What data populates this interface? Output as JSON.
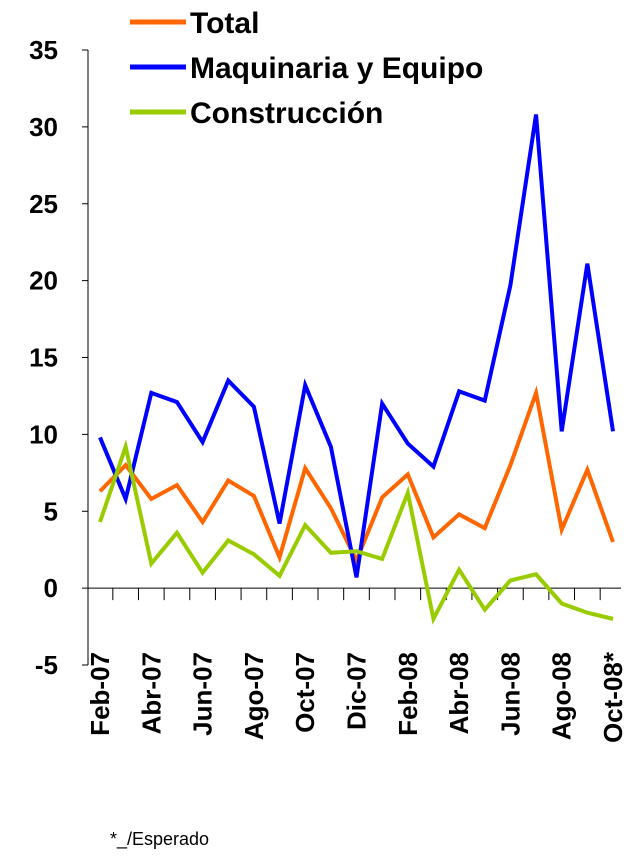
{
  "chart_data": {
    "type": "line",
    "categories": [
      "Feb-07",
      null,
      "Abr-07",
      null,
      "Jun-07",
      null,
      "Ago-07",
      null,
      "Oct-07",
      null,
      "Dic-07",
      null,
      "Feb-08",
      null,
      "Abr-08",
      null,
      "Jun-08",
      null,
      "Ago-08",
      null,
      "Oct-08*"
    ],
    "series": [
      {
        "name": "Total",
        "color": "#ff6600",
        "values": [
          6.3,
          8.0,
          5.8,
          6.7,
          4.3,
          7.0,
          6.0,
          2.0,
          7.8,
          5.2,
          1.8,
          5.9,
          7.4,
          3.3,
          4.8,
          3.9,
          8.0,
          12.7,
          3.8,
          7.7,
          3.0
        ]
      },
      {
        "name": "Maquinaria y Equipo",
        "color": "#0000ff",
        "values": [
          9.8,
          5.8,
          12.7,
          12.1,
          9.5,
          13.5,
          11.8,
          4.2,
          13.2,
          9.2,
          0.7,
          12.0,
          9.4,
          7.9,
          12.8,
          12.2,
          19.7,
          30.8,
          10.2,
          21.1,
          10.2
        ]
      },
      {
        "name": "Construcción",
        "color": "#99cc00",
        "values": [
          4.3,
          9.2,
          1.6,
          3.6,
          1.0,
          3.1,
          2.2,
          0.8,
          4.1,
          2.3,
          2.4,
          1.9,
          6.2,
          -2.0,
          1.2,
          -1.4,
          0.5,
          0.9,
          -1.0,
          -1.6,
          -2.0
        ]
      }
    ],
    "ylim": [
      -5,
      35
    ],
    "yticks": [
      -5,
      0,
      5,
      10,
      15,
      20,
      25,
      30,
      35
    ],
    "note": "*_/Esperado"
  }
}
